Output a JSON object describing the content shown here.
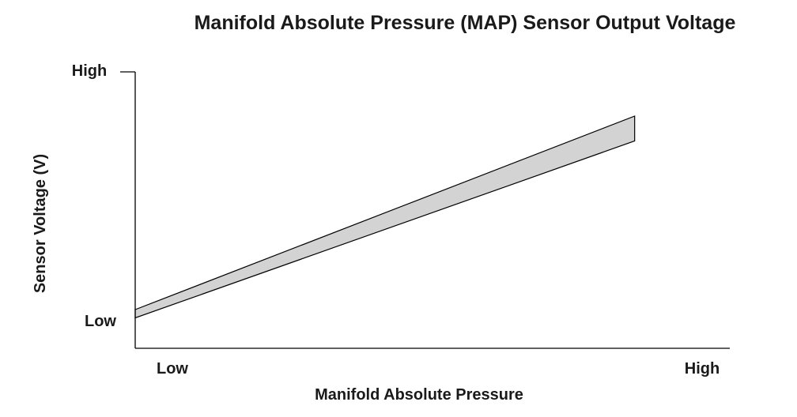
{
  "chart_data": {
    "type": "area",
    "title": "Manifold Absolute Pressure (MAP) Sensor Output Voltage",
    "xlabel": "Manifold Absolute Pressure",
    "ylabel": "Sensor Voltage (V)",
    "x_tick_labels": [
      "Low",
      "High"
    ],
    "y_tick_labels": [
      "Low",
      "High"
    ],
    "x_range_labels": [
      "Low",
      "High"
    ],
    "xlim": [
      0,
      1
    ],
    "ylim": [
      0,
      1
    ],
    "grid": false,
    "legend": "none",
    "band": {
      "x": [
        0.0,
        0.84
      ],
      "upper": [
        0.14,
        0.84
      ],
      "lower": [
        0.11,
        0.75
      ]
    },
    "colors": {
      "band_fill": "#d3d3d3",
      "band_stroke": "#000000",
      "axis": "#000000",
      "text": "#1a1a1a"
    }
  }
}
